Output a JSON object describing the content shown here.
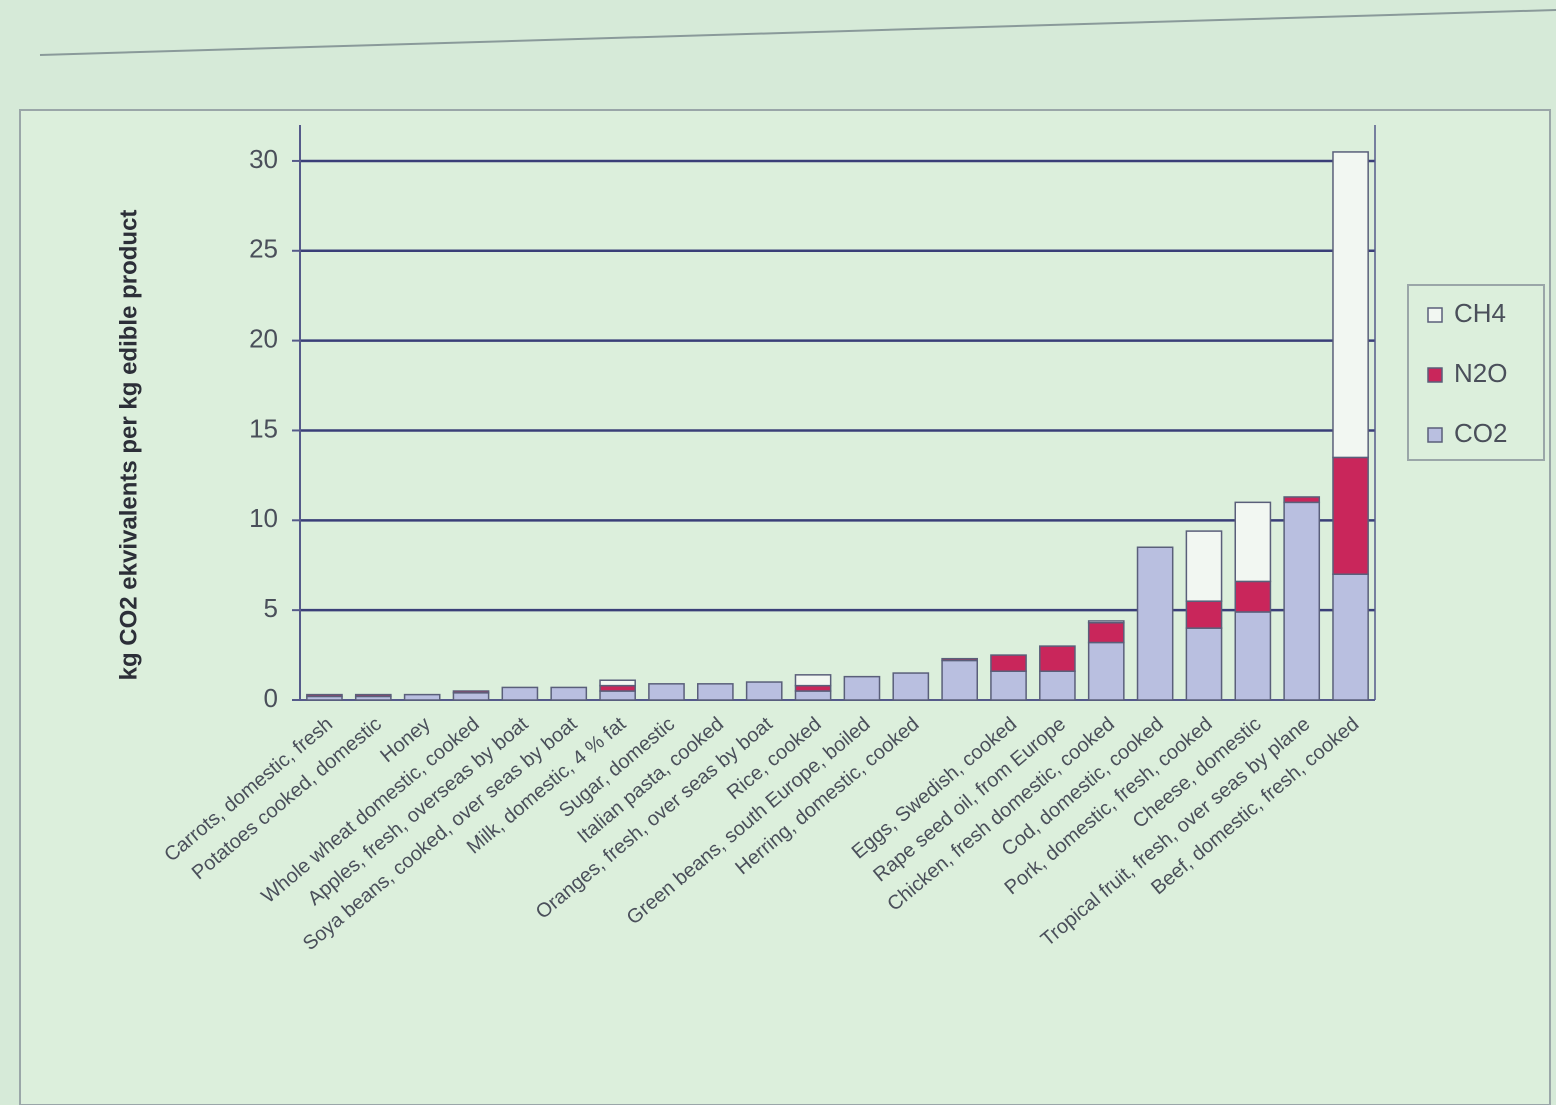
{
  "chart_data": {
    "type": "stacked_bar",
    "y_label": "kg CO2 ekvivalents per kg edible product",
    "categories": [
      "Carrots, domestic, fresh",
      "Potatoes cooked, domestic",
      "Honey",
      "Whole wheat domestic, cooked",
      "Apples, fresh, overseas by boat",
      "Soya beans, cooked, over seas by boat",
      "Milk, domestic, 4 % fat",
      "Sugar, domestic",
      "Italian pasta, cooked",
      "Oranges, fresh, over seas by boat",
      "Rice, cooked",
      "Green beans, south Europe, boiled",
      "Herring, domestic, cooked",
      null,
      "Eggs, Swedish, cooked",
      "Rape seed oil, from Europe",
      "Chicken, fresh domestic, cooked",
      "Cod, domestic, cooked",
      "Pork, domestic, fresh, cooked",
      "Cheese, domestic",
      "Tropical fruit, fresh, over seas by plane",
      "Beef, domestic, fresh, cooked"
    ],
    "series": [
      {
        "name": "CO2",
        "color": "#b9bfe0",
        "values": [
          0.2,
          0.2,
          0.3,
          0.4,
          0.7,
          0.7,
          0.5,
          0.9,
          0.9,
          1.0,
          0.5,
          1.3,
          1.5,
          2.2,
          1.6,
          1.6,
          3.2,
          8.5,
          4.0,
          4.9,
          11.0,
          7.0
        ]
      },
      {
        "name": "N2O",
        "color": "#c9265b",
        "values": [
          0.1,
          0.1,
          0,
          0.1,
          0,
          0,
          0.3,
          0,
          0,
          0,
          0.3,
          0,
          0,
          0.1,
          0.9,
          1.4,
          1.1,
          0,
          1.5,
          1.7,
          0.3,
          6.5
        ]
      },
      {
        "name": "CH4",
        "color": "#f2f7f2",
        "values": [
          0,
          0,
          0,
          0,
          0,
          0,
          0.3,
          0,
          0,
          0,
          0.6,
          0,
          0,
          0,
          0,
          0,
          0.1,
          0,
          3.9,
          4.4,
          0,
          17.0
        ]
      }
    ],
    "ylim": [
      0,
      32
    ],
    "yticks": [
      0,
      5,
      10,
      15,
      20,
      25,
      30
    ],
    "grid": true,
    "legend": "right"
  }
}
